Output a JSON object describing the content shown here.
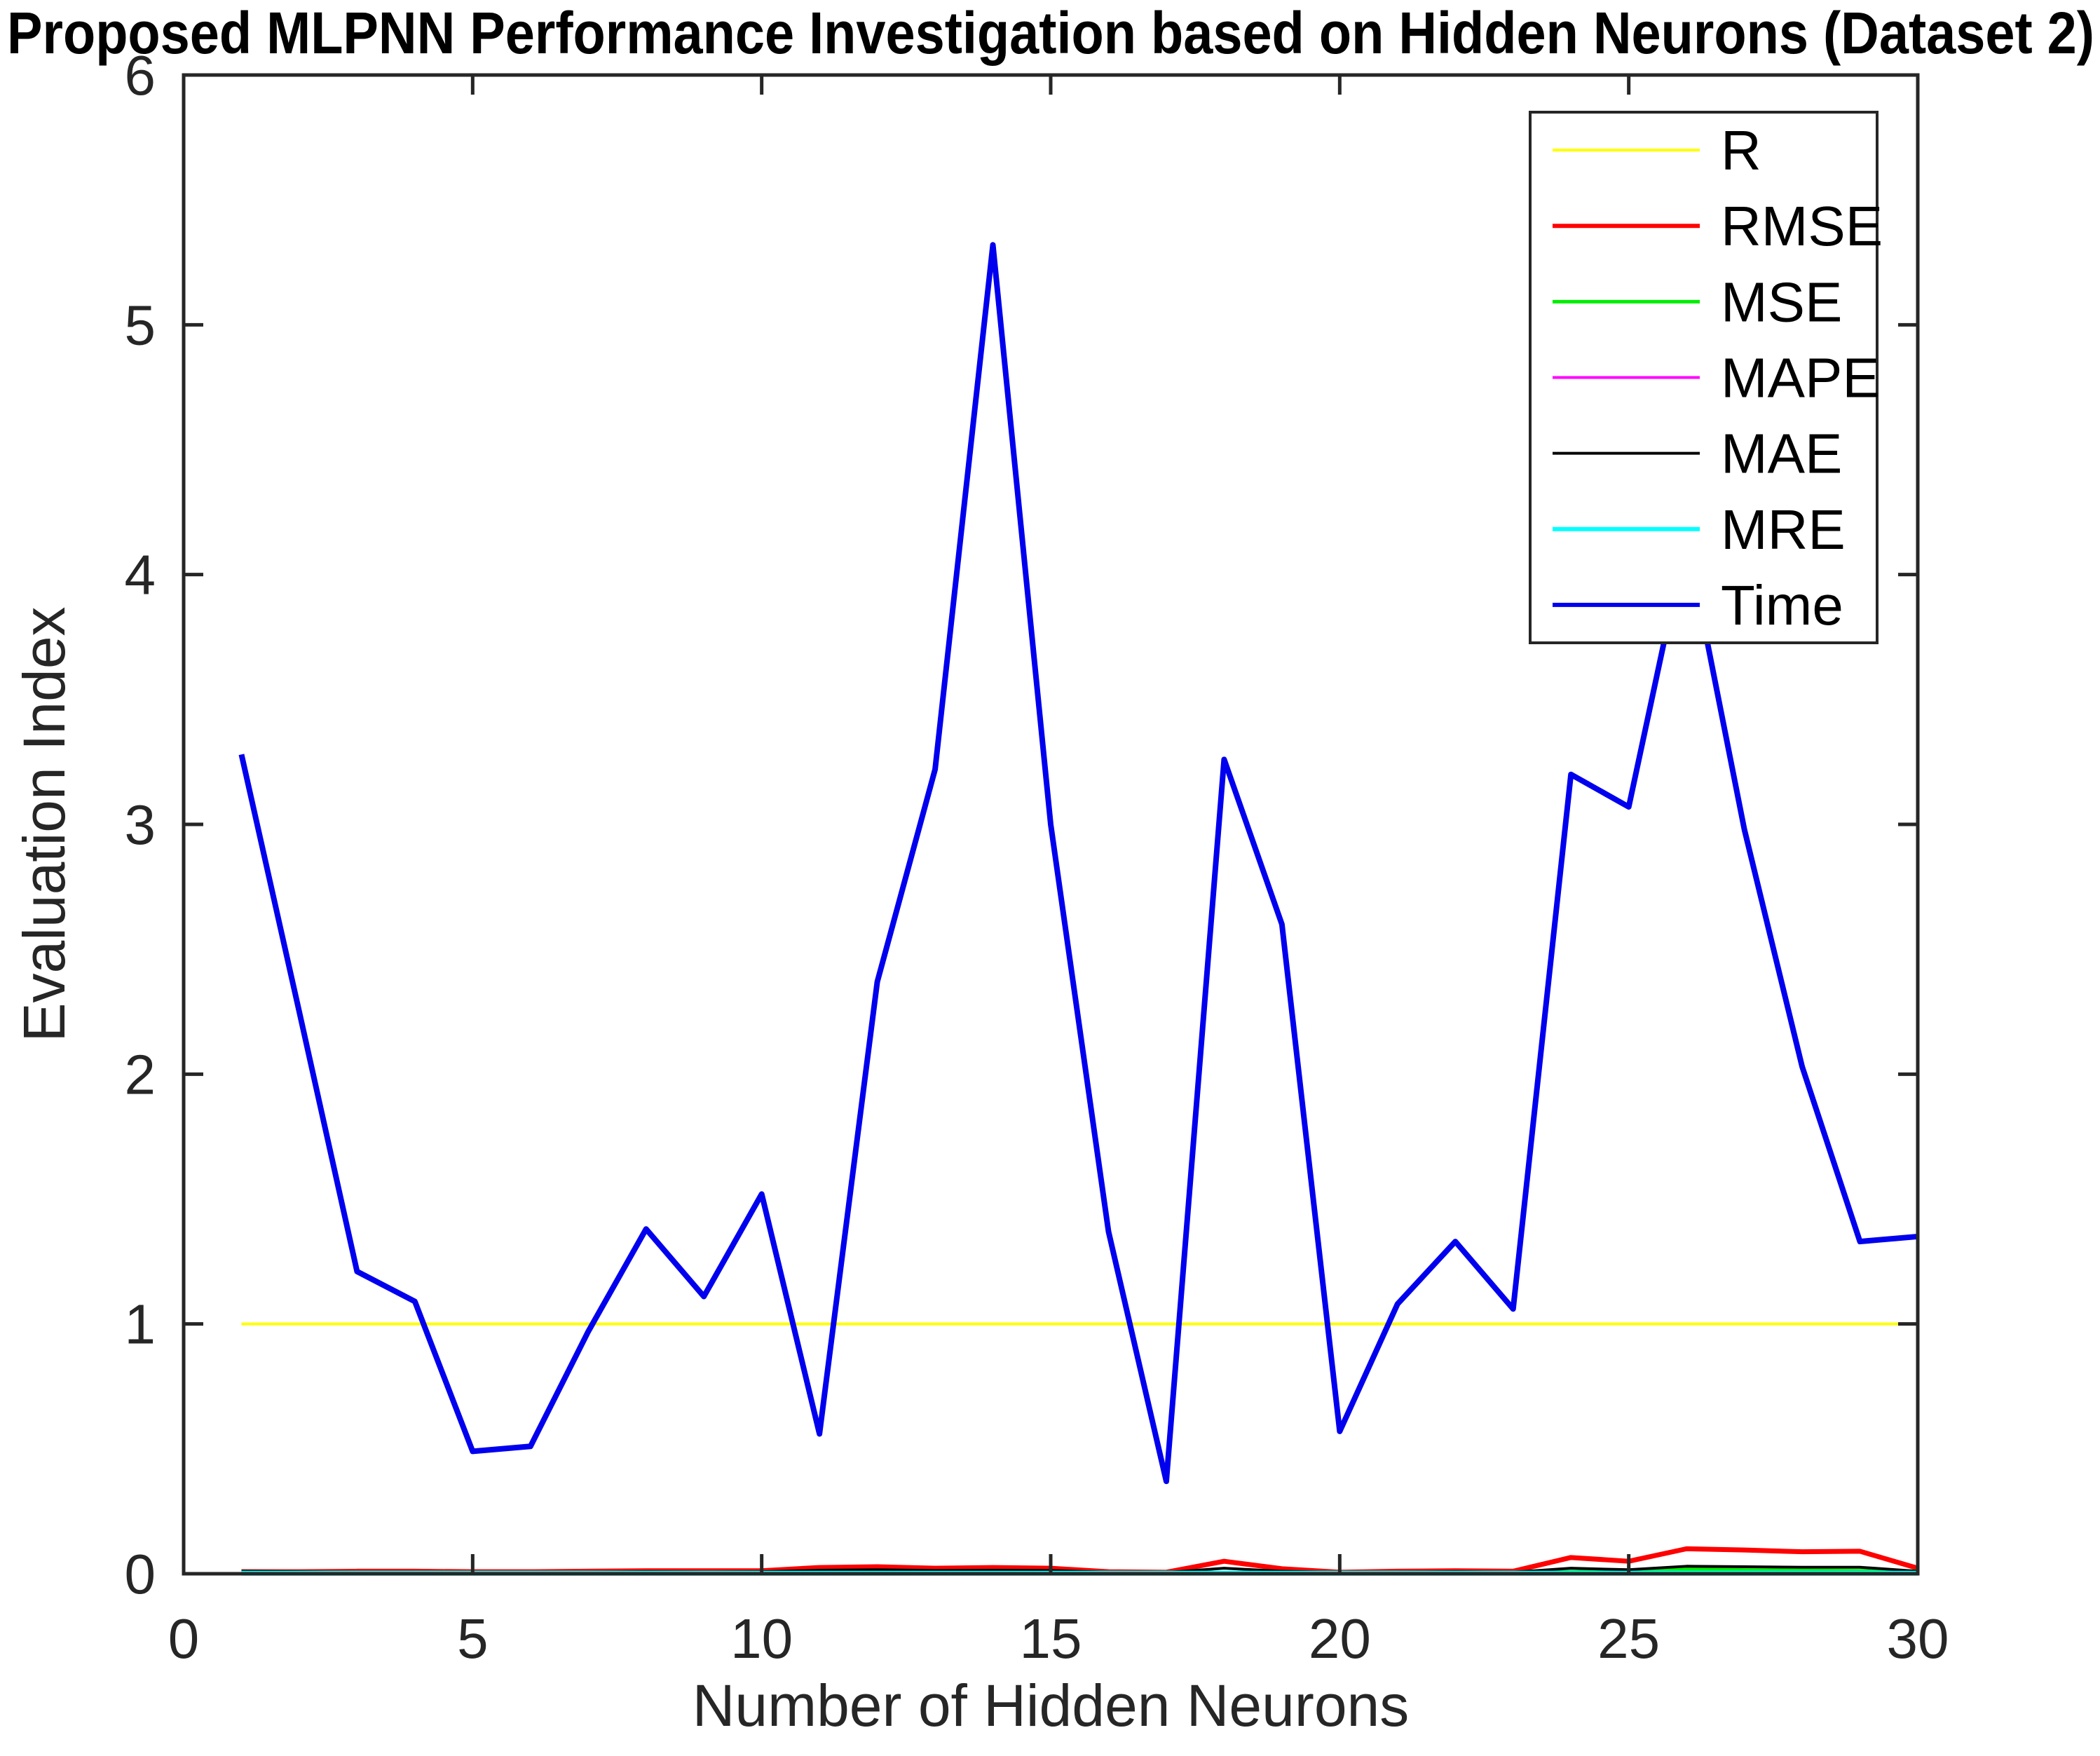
{
  "chart_data": {
    "type": "line",
    "title": "Proposed MLPNN Performance Investigation based on Hidden Neurons (Dataset 2)",
    "xlabel": "Number of Hidden Neurons",
    "ylabel": "Evaluation Index",
    "xlim": [
      0,
      30
    ],
    "ylim": [
      0,
      6
    ],
    "xticks": [
      0,
      5,
      10,
      15,
      20,
      25,
      30
    ],
    "yticks": [
      0,
      1,
      2,
      3,
      4,
      5,
      6
    ],
    "grid": false,
    "legend_position": "inside-top-right",
    "axis_color": "#262626",
    "background_color": "#ffffff",
    "x": [
      1,
      2,
      3,
      4,
      5,
      6,
      7,
      8,
      9,
      10,
      11,
      12,
      13,
      14,
      15,
      16,
      17,
      18,
      19,
      20,
      21,
      22,
      23,
      24,
      25,
      26,
      27,
      28,
      29,
      30
    ],
    "series": [
      {
        "name": "R",
        "color": "#ffff00",
        "values": [
          1,
          1,
          1,
          1,
          1,
          1,
          1,
          1,
          1,
          1,
          1,
          1,
          1,
          1,
          1,
          1,
          1,
          1,
          1,
          1,
          1,
          1,
          1,
          1,
          1,
          1,
          1,
          1,
          1,
          1
        ]
      },
      {
        "name": "RMSE",
        "color": "#ff0000",
        "values": [
          0.008,
          0.008,
          0.01,
          0.01,
          0.008,
          0.008,
          0.01,
          0.012,
          0.012,
          0.012,
          0.025,
          0.028,
          0.022,
          0.025,
          0.022,
          0.008,
          0.006,
          0.05,
          0.02,
          0.006,
          0.01,
          0.012,
          0.01,
          0.065,
          0.05,
          0.1,
          0.095,
          0.088,
          0.09,
          0.022
        ]
      },
      {
        "name": "MSE",
        "color": "#00ee00",
        "values": [
          0.002,
          0.002,
          0.002,
          0.002,
          0.002,
          0.002,
          0.002,
          0.002,
          0.002,
          0.002,
          0.002,
          0.002,
          0.002,
          0.002,
          0.002,
          0.002,
          0.002,
          0.002,
          0.002,
          0.002,
          0.002,
          0.002,
          0.004,
          0.008,
          0.01,
          0.018,
          0.015,
          0.013,
          0.012,
          0.01
        ]
      },
      {
        "name": "MAPE",
        "color": "#ff00ff",
        "values": [
          0.004,
          0.004,
          0.004,
          0.004,
          0.004,
          0.004,
          0.004,
          0.004,
          0.004,
          0.004,
          0.004,
          0.004,
          0.004,
          0.004,
          0.004,
          0.004,
          0.004,
          0.004,
          0.004,
          0.004,
          0.004,
          0.004,
          0.004,
          0.004,
          0.004,
          0.004,
          0.004,
          0.004,
          0.004,
          0.004
        ]
      },
      {
        "name": "MAE",
        "color": "#000000",
        "values": [
          0.01,
          0.008,
          0.006,
          0.006,
          0.005,
          0.005,
          0.006,
          0.008,
          0.007,
          0.008,
          0.014,
          0.016,
          0.013,
          0.014,
          0.013,
          0.006,
          0.005,
          0.022,
          0.01,
          0.005,
          0.006,
          0.008,
          0.006,
          0.022,
          0.016,
          0.03,
          0.028,
          0.026,
          0.026,
          0.01
        ]
      },
      {
        "name": "MRE",
        "color": "#00ffff",
        "values": [
          0.002,
          0.002,
          0.002,
          0.002,
          0.002,
          0.002,
          0.002,
          0.002,
          0.002,
          0.002,
          0.002,
          0.002,
          0.002,
          0.002,
          0.002,
          0.002,
          0.002,
          0.002,
          0.002,
          0.002,
          0.002,
          0.002,
          0.002,
          0.002,
          0.002,
          0.002,
          0.002,
          0.002,
          0.002,
          0.002
        ]
      },
      {
        "name": "Time",
        "color": "#0000ee",
        "values": [
          3.28,
          2.25,
          1.21,
          1.09,
          0.49,
          0.51,
          0.97,
          1.38,
          1.11,
          1.52,
          0.56,
          2.37,
          3.22,
          5.32,
          3.0,
          1.37,
          0.37,
          3.26,
          2.6,
          0.57,
          1.08,
          1.33,
          1.06,
          3.2,
          3.07,
          4.15,
          2.98,
          2.03,
          1.33,
          1.35
        ]
      }
    ]
  }
}
